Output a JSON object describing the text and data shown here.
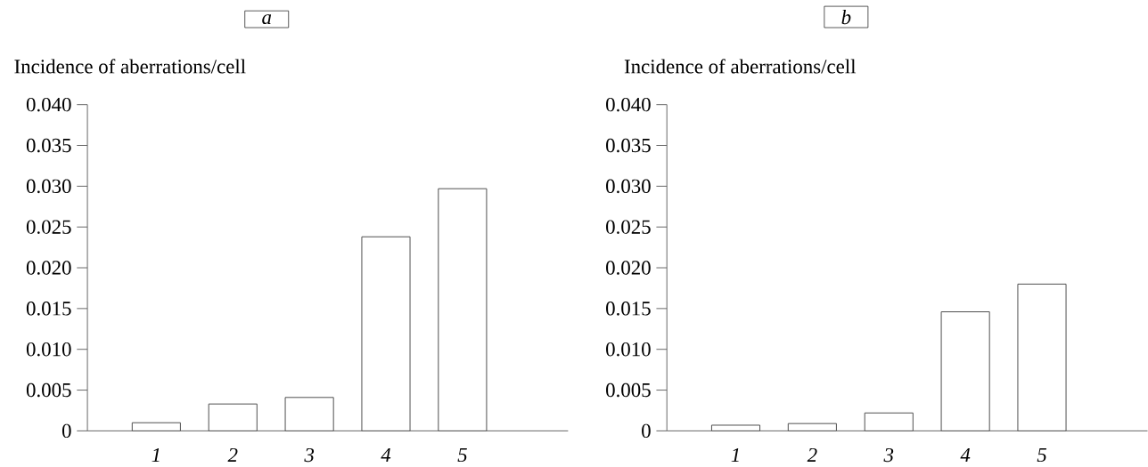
{
  "chart_data": [
    {
      "type": "bar",
      "title": "a",
      "ylabel": "Incidence of aberrations/cell",
      "categories": [
        "1",
        "2",
        "3",
        "4",
        "5"
      ],
      "values": [
        0.001,
        0.0033,
        0.0041,
        0.0238,
        0.0297
      ],
      "color": "#ffffff",
      "ylim": [
        0,
        0.04
      ],
      "yticks": [
        0,
        {
          "value": 0.005,
          "label": "0.005"
        },
        {
          "value": 0.01,
          "label": "0.010"
        },
        {
          "value": 0.015,
          "label": "0.015"
        },
        {
          "value": 0.02,
          "label": "0.020"
        },
        {
          "value": 0.025,
          "label": "0.025"
        },
        {
          "value": 0.03,
          "label": "0.030"
        },
        {
          "value": 0.035,
          "label": "0.035"
        },
        {
          "value": 0.04,
          "label": "0.040"
        }
      ]
    },
    {
      "type": "bar",
      "title": "b",
      "ylabel": "Incidence of aberrations/cell",
      "categories": [
        "1",
        "2",
        "3",
        "4",
        "5"
      ],
      "values": [
        0.0007,
        0.0009,
        0.0022,
        0.0146,
        0.018
      ],
      "color": "#ffffff",
      "ylim": [
        0,
        0.04
      ],
      "yticks": [
        0,
        {
          "value": 0.005,
          "label": "0.005"
        },
        {
          "value": 0.01,
          "label": "0.010"
        },
        {
          "value": 0.015,
          "label": "0.015"
        },
        {
          "value": 0.02,
          "label": "0.020"
        },
        {
          "value": 0.025,
          "label": "0.025"
        },
        {
          "value": 0.03,
          "label": "0.030"
        },
        {
          "value": 0.035,
          "label": "0.035"
        },
        {
          "value": 0.04,
          "label": "0.040"
        }
      ]
    }
  ]
}
